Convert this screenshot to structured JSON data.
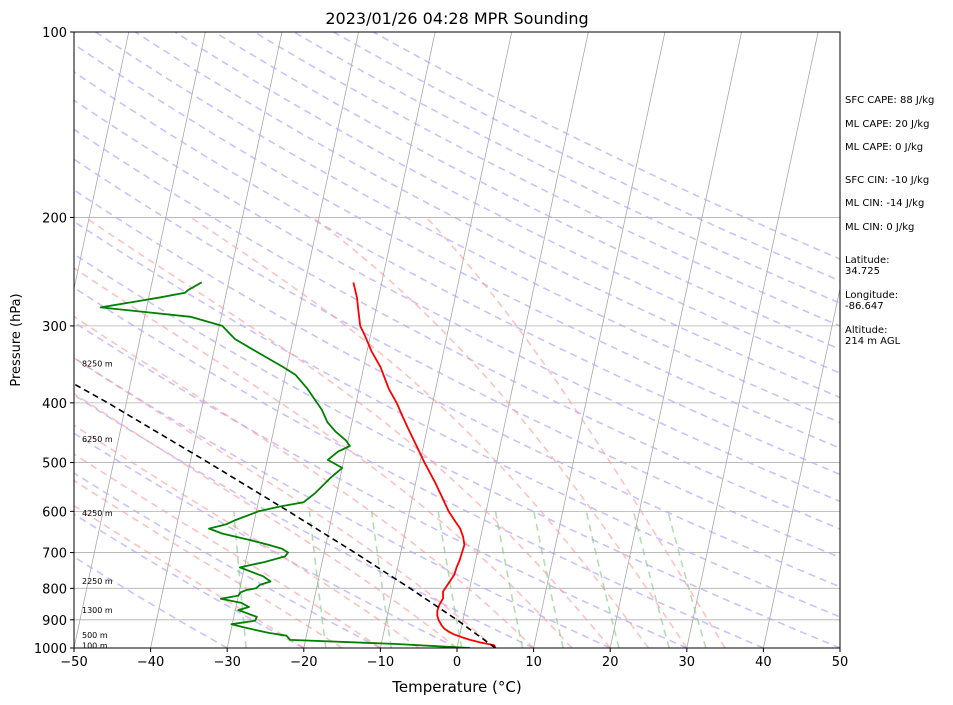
{
  "chart_data": {
    "type": "line",
    "title": "2023/01/26 04:28 MPR Sounding",
    "xlabel": "Temperature (°C)",
    "ylabel": "Pressure (hPa)",
    "xlim": [
      -50,
      50
    ],
    "ylim": [
      1000,
      100
    ],
    "y_scale": "log",
    "grid": true,
    "x_ticks": [
      -50,
      -40,
      -30,
      -20,
      -10,
      0,
      10,
      20,
      30,
      40,
      50
    ],
    "x_tick_labels": [
      "−50",
      "−40",
      "−30",
      "−20",
      "−10",
      "0",
      "10",
      "20",
      "30",
      "40",
      "50"
    ],
    "y_ticks": [
      1000,
      900,
      800,
      700,
      600,
      500,
      400,
      300,
      200,
      100
    ],
    "y_tick_labels": [
      "1000",
      "900",
      "800",
      "700",
      "600",
      "500",
      "400",
      "300",
      "200",
      "100"
    ],
    "height_labels": [
      {
        "text": "100 m",
        "p": 990
      },
      {
        "text": "500 m",
        "p": 953
      },
      {
        "text": "1300 m",
        "p": 868
      },
      {
        "text": "2250 m",
        "p": 778
      },
      {
        "text": "4250 m",
        "p": 604
      },
      {
        "text": "6250 m",
        "p": 458
      },
      {
        "text": "8250 m",
        "p": 345
      }
    ],
    "series": [
      {
        "color": "#ff0000",
        "points": [
          [
            1000,
            5.0
          ],
          [
            990,
            4.8
          ],
          [
            980,
            3.0
          ],
          [
            970,
            1.5
          ],
          [
            960,
            0.3
          ],
          [
            950,
            -0.8
          ],
          [
            940,
            -1.6
          ],
          [
            930,
            -2.2
          ],
          [
            920,
            -2.6
          ],
          [
            910,
            -2.9
          ],
          [
            900,
            -3.2
          ],
          [
            885,
            -3.5
          ],
          [
            870,
            -3.6
          ],
          [
            850,
            -3.5
          ],
          [
            830,
            -3.2
          ],
          [
            810,
            -3.4
          ],
          [
            800,
            -3.2
          ],
          [
            790,
            -3.0
          ],
          [
            760,
            -2.4
          ],
          [
            740,
            -2.3
          ],
          [
            720,
            -2.1
          ],
          [
            700,
            -2.0
          ],
          [
            680,
            -1.9
          ],
          [
            660,
            -2.3
          ],
          [
            640,
            -2.9
          ],
          [
            620,
            -3.9
          ],
          [
            600,
            -4.9
          ],
          [
            570,
            -6.1
          ],
          [
            540,
            -7.4
          ],
          [
            500,
            -9.4
          ],
          [
            470,
            -10.9
          ],
          [
            440,
            -12.5
          ],
          [
            420,
            -13.6
          ],
          [
            400,
            -14.7
          ],
          [
            380,
            -16.1
          ],
          [
            350,
            -17.8
          ],
          [
            330,
            -19.4
          ],
          [
            310,
            -20.8
          ],
          [
            300,
            -21.6
          ],
          [
            280,
            -22.4
          ],
          [
            270,
            -22.8
          ],
          [
            255,
            -23.7
          ]
        ]
      },
      {
        "color": "#008000",
        "points": [
          [
            1000,
            1.7
          ],
          [
            995,
            -1.5
          ],
          [
            985,
            -8
          ],
          [
            970,
            -22
          ],
          [
            955,
            -22.6
          ],
          [
            945,
            -25
          ],
          [
            935,
            -26.8
          ],
          [
            925,
            -28.5
          ],
          [
            915,
            -30.1
          ],
          [
            903,
            -27.1
          ],
          [
            890,
            -27
          ],
          [
            878,
            -28.4
          ],
          [
            868,
            -29.6
          ],
          [
            858,
            -28.3
          ],
          [
            845,
            -29.4
          ],
          [
            832,
            -32.2
          ],
          [
            822,
            -30
          ],
          [
            812,
            -29.8
          ],
          [
            805,
            -29.1
          ],
          [
            800,
            -27.9
          ],
          [
            790,
            -27.5
          ],
          [
            780,
            -26.2
          ],
          [
            765,
            -27.3
          ],
          [
            740,
            -30.6
          ],
          [
            725,
            -27.5
          ],
          [
            710,
            -25.0
          ],
          [
            700,
            -24.7
          ],
          [
            690,
            -25.6
          ],
          [
            680,
            -27.5
          ],
          [
            668,
            -30.0
          ],
          [
            652,
            -33.8
          ],
          [
            640,
            -35.7
          ],
          [
            630,
            -33.6
          ],
          [
            620,
            -32.5
          ],
          [
            600,
            -29.7
          ],
          [
            590,
            -27.2
          ],
          [
            580,
            -24.1
          ],
          [
            560,
            -22.8
          ],
          [
            530,
            -21.3
          ],
          [
            510,
            -20.0
          ],
          [
            495,
            -22.1
          ],
          [
            480,
            -21.0
          ],
          [
            470,
            -19.6
          ],
          [
            460,
            -20.3
          ],
          [
            445,
            -21.9
          ],
          [
            430,
            -23.2
          ],
          [
            410,
            -24.3
          ],
          [
            395,
            -25.5
          ],
          [
            380,
            -26.7
          ],
          [
            360,
            -28.7
          ],
          [
            350,
            -30.5
          ],
          [
            330,
            -34.5
          ],
          [
            315,
            -37.6
          ],
          [
            300,
            -39.6
          ],
          [
            290,
            -44.0
          ],
          [
            280,
            -56.0
          ],
          [
            270,
            -48.7
          ],
          [
            265,
            -45.4
          ],
          [
            262,
            -45.0
          ],
          [
            255,
            -43.5
          ]
        ]
      },
      {
        "color": "#000000",
        "dash": "6,4",
        "points": [
          [
            1000,
            5
          ],
          [
            900,
            -0.8
          ],
          [
            800,
            -7.8
          ],
          [
            700,
            -16.0
          ],
          [
            600,
            -25.8
          ],
          [
            500,
            -37.6
          ],
          [
            400,
            -52.4
          ],
          [
            300,
            -72.5
          ],
          [
            260,
            -82.8
          ]
        ]
      }
    ]
  },
  "side_panel": {
    "sfc_cape": "SFC CAPE: 88 J/kg",
    "ml_cape_1": "ML CAPE: 20 J/kg",
    "ml_cape_2": "ML CAPE: 0 J/kg",
    "sfc_cin": "SFC CIN: -10 J/kg",
    "ml_cin_1": "ML CIN: -14 J/kg",
    "ml_cin_2": "ML CIN: 0 J/kg",
    "latitude_label": "Latitude:",
    "latitude_value": "34.725",
    "longitude_label": "Longitude:",
    "longitude_value": "-86.647",
    "altitude_label": "Altitude:",
    "altitude_value": "214 m AGL"
  }
}
